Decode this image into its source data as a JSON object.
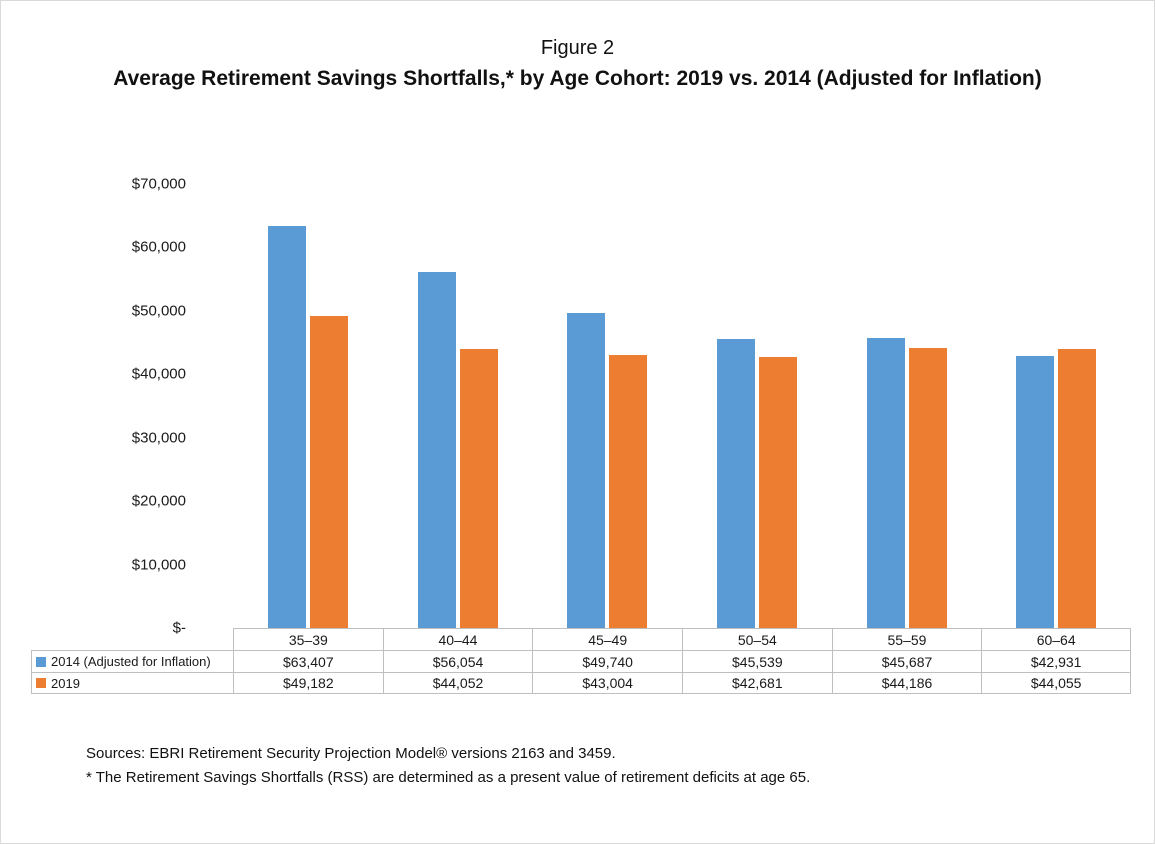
{
  "figure": {
    "label": "Figure 2",
    "title": "Average Retirement Savings Shortfalls,* by Age Cohort: 2019 vs. 2014 (Adjusted for Inflation)"
  },
  "chart_data": {
    "type": "bar",
    "title": "Average Retirement Savings Shortfalls,* by Age Cohort: 2019 vs. 2014 (Adjusted for Inflation)",
    "categories": [
      "35–39",
      "40–44",
      "45–49",
      "50–54",
      "55–59",
      "60–64"
    ],
    "series": [
      {
        "name": "2014 (Adjusted for Inflation)",
        "color": "#5B9BD5",
        "values": [
          63407,
          56054,
          49740,
          45539,
          45687,
          42931
        ],
        "labels": [
          "$63,407",
          "$56,054",
          "$49,740",
          "$45,539",
          "$45,687",
          "$42,931"
        ]
      },
      {
        "name": "2019",
        "color": "#ED7D31",
        "values": [
          49182,
          44052,
          43004,
          42681,
          44186,
          44055
        ],
        "labels": [
          "$49,182",
          "$44,052",
          "$43,004",
          "$42,681",
          "$44,186",
          "$44,055"
        ]
      }
    ],
    "y_ticks": [
      "$70,000",
      "$60,000",
      "$50,000",
      "$40,000",
      "$30,000",
      "$20,000",
      "$10,000",
      "$-"
    ],
    "xlabel": "",
    "ylabel": "",
    "ylim": [
      0,
      70000
    ],
    "grid": false,
    "legend_position": "table-left"
  },
  "footnotes": {
    "sources": "Sources: EBRI Retirement Security Projection Model® versions 2163 and 3459.",
    "note": "* The Retirement Savings Shortfalls (RSS) are determined as a present value of retirement deficits at age 65."
  }
}
